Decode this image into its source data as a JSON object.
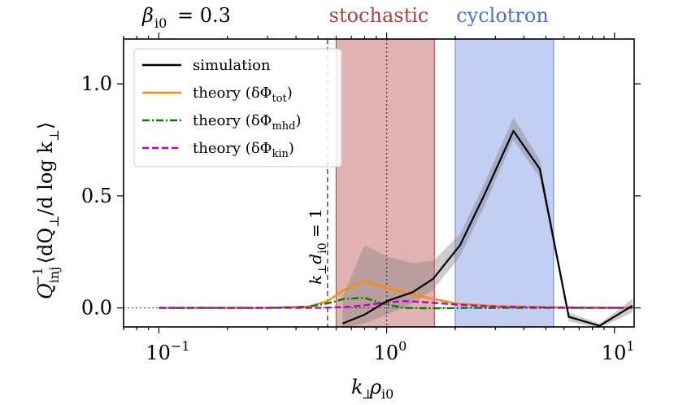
{
  "chart_data": {
    "type": "line",
    "beta_label": "β",
    "beta_subscript": "i0",
    "beta_value": "= 0.3",
    "xlabel_main": "k",
    "xlabel_sub1": "⊥",
    "xlabel_rho": "ρ",
    "xlabel_sub2": "i0",
    "ylabel_text": "Q_inj^-1 ⟨dQ_⊥ / d log k_⊥⟩",
    "ylabel_parts": {
      "q": "Q",
      "inj": "inj",
      "exp": "−1",
      "body": "⟨dQ",
      "perp": "⊥",
      "tail": "/d log k",
      "close": "⟩"
    },
    "xscale": "log",
    "xlim": [
      0.07,
      12.2
    ],
    "ylim": [
      -0.085,
      1.2
    ],
    "xticks": [
      {
        "value": 0.1,
        "base": "10",
        "exp": "−1"
      },
      {
        "value": 1,
        "base": "10",
        "exp": "0"
      },
      {
        "value": 10,
        "base": "10",
        "exp": "1"
      }
    ],
    "yticks": [
      {
        "value": 0.0,
        "label": "0.0"
      },
      {
        "value": 0.5,
        "label": "0.5"
      },
      {
        "value": 1.0,
        "label": "1.0"
      }
    ],
    "bands": [
      {
        "name": "stochastic",
        "x0": 0.6,
        "x1": 1.62,
        "color": "#cd7f7f",
        "edge": "#c05454",
        "label_color": "#b83c3c"
      },
      {
        "name": "cyclotron",
        "x0": 2.0,
        "x1": 5.4,
        "color": "#9aaeea",
        "edge": "#7a90e0",
        "label_color": "#4a6fd8"
      }
    ],
    "vlines": [
      {
        "x": 0.55,
        "style": "dashed",
        "label": "k⊥d_i0 = 1",
        "label_k": "k",
        "label_perp": "⊥",
        "label_d": "d",
        "label_sub": "i0",
        "label_eq": " = 1"
      },
      {
        "x": 1.0,
        "style": "dotted"
      }
    ],
    "zero_line_style": "dotted",
    "legend": {
      "location": "top-left",
      "entries": [
        {
          "key": "simulation",
          "text": "simulation",
          "color": "#000000",
          "dash": ""
        },
        {
          "key": "tot",
          "text": "theory (δΦ",
          "sub": "tot",
          "close": ")",
          "color": "#ff8c00",
          "dash": ""
        },
        {
          "key": "mhd",
          "text": "theory (δΦ",
          "sub": "mhd",
          "close": ")",
          "color": "#008000",
          "dash": "9,3,2,3"
        },
        {
          "key": "kin",
          "text": "theory (δΦ",
          "sub": "kin",
          "close": ")",
          "color": "#c000c0",
          "dash": "8,4"
        }
      ]
    },
    "series": [
      {
        "name": "simulation",
        "color": "#000000",
        "dash": "",
        "x": [
          0.64,
          0.8,
          1.0,
          1.3,
          1.6,
          2.1,
          2.7,
          3.6,
          4.7,
          6.3,
          8.6,
          12.0
        ],
        "y": [
          -0.07,
          -0.03,
          0.03,
          0.07,
          0.13,
          0.28,
          0.51,
          0.79,
          0.62,
          -0.04,
          -0.08,
          0.01
        ],
        "band_lo": [
          -0.09,
          -0.07,
          -0.03,
          0.02,
          0.08,
          0.23,
          0.46,
          0.75,
          0.58,
          -0.06,
          -0.09,
          -0.02
        ],
        "band_hi": [
          0.05,
          0.28,
          0.23,
          0.2,
          0.21,
          0.33,
          0.56,
          0.85,
          0.66,
          -0.02,
          -0.07,
          0.04
        ]
      },
      {
        "name": "theory (δΦ_tot)",
        "color": "#ff8c00",
        "dash": "",
        "x": [
          0.1,
          0.3,
          0.45,
          0.55,
          0.65,
          0.8,
          1.0,
          1.3,
          1.6,
          2.0,
          3.0,
          5.0,
          8.0,
          12.0
        ],
        "y": [
          0.0,
          0.0,
          0.005,
          0.03,
          0.08,
          0.12,
          0.09,
          0.06,
          0.04,
          0.02,
          0.008,
          0.003,
          0.001,
          0.0
        ]
      },
      {
        "name": "theory (δΦ_mhd)",
        "color": "#008000",
        "dash": "9,3,2,3",
        "x": [
          0.1,
          0.3,
          0.45,
          0.55,
          0.65,
          0.8,
          0.95,
          1.2,
          1.6,
          2.2,
          3.0,
          5.0,
          8.0,
          12.0
        ],
        "y": [
          0.0,
          0.0,
          0.005,
          0.02,
          0.04,
          0.045,
          0.02,
          0.0,
          -0.002,
          0.0,
          0.0,
          0.0,
          0.0,
          0.0
        ]
      },
      {
        "name": "theory (δΦ_kin)",
        "color": "#c000c0",
        "dash": "8,4",
        "x": [
          0.1,
          0.3,
          0.5,
          0.7,
          0.85,
          1.0,
          1.2,
          1.5,
          2.0,
          3.0,
          5.0,
          8.0,
          12.0
        ],
        "y": [
          0.0,
          0.0,
          0.0,
          0.005,
          0.015,
          0.025,
          0.03,
          0.025,
          0.015,
          0.006,
          0.002,
          0.0,
          0.0
        ]
      }
    ]
  }
}
